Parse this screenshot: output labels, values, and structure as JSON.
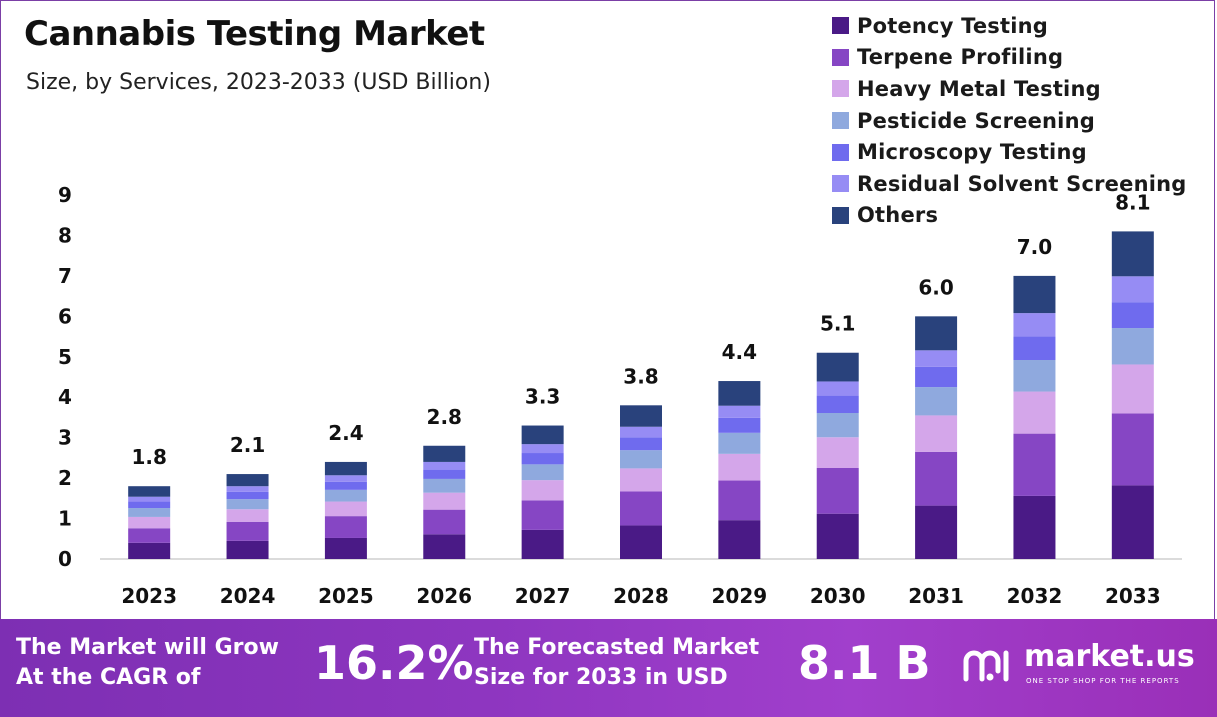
{
  "header": {
    "title": "Cannabis Testing Market",
    "subtitle": "Size, by Services, 2023-2033 (USD Billion)"
  },
  "chart_data": {
    "type": "bar",
    "stacked": true,
    "title": "Cannabis Testing Market",
    "subtitle": "Size, by Services, 2023-2033 (USD Billion)",
    "categories": [
      "2023",
      "2024",
      "2025",
      "2026",
      "2027",
      "2028",
      "2029",
      "2030",
      "2031",
      "2032",
      "2033"
    ],
    "totals": [
      1.8,
      2.1,
      2.4,
      2.8,
      3.3,
      3.8,
      4.4,
      5.1,
      6.0,
      7.0,
      8.1
    ],
    "total_labels": [
      "1.8",
      "2.1",
      "2.4",
      "2.8",
      "3.3",
      "3.8",
      "4.4",
      "5.1",
      "6.0",
      "7.0",
      "8.1"
    ],
    "series": [
      {
        "name": "Potency Testing",
        "color": "#4a1a86",
        "values": [
          0.4,
          0.45,
          0.52,
          0.61,
          0.72,
          0.83,
          0.96,
          1.12,
          1.32,
          1.56,
          1.82
        ]
      },
      {
        "name": "Terpene Profiling",
        "color": "#8646c4",
        "values": [
          0.36,
          0.47,
          0.54,
          0.61,
          0.73,
          0.84,
          0.98,
          1.13,
          1.33,
          1.54,
          1.78
        ]
      },
      {
        "name": "Heavy Metal Testing",
        "color": "#d4a6ea",
        "values": [
          0.28,
          0.31,
          0.36,
          0.42,
          0.5,
          0.57,
          0.66,
          0.76,
          0.9,
          1.04,
          1.21
        ]
      },
      {
        "name": "Pesticide Screening",
        "color": "#8fa9de",
        "values": [
          0.22,
          0.25,
          0.29,
          0.34,
          0.39,
          0.45,
          0.52,
          0.6,
          0.7,
          0.78,
          0.9
        ]
      },
      {
        "name": "Microscopy Testing",
        "color": "#6f6bee",
        "values": [
          0.16,
          0.18,
          0.2,
          0.23,
          0.28,
          0.32,
          0.37,
          0.43,
          0.5,
          0.58,
          0.64
        ]
      },
      {
        "name": "Residual Solvent Screening",
        "color": "#968cf4",
        "values": [
          0.12,
          0.14,
          0.16,
          0.19,
          0.22,
          0.26,
          0.3,
          0.35,
          0.41,
          0.58,
          0.64
        ]
      },
      {
        "name": "Others",
        "color": "#29427c",
        "values": [
          0.26,
          0.3,
          0.33,
          0.4,
          0.46,
          0.53,
          0.61,
          0.71,
          0.84,
          0.92,
          1.11
        ]
      }
    ],
    "ylim": [
      0,
      9
    ],
    "yticks": [
      "0",
      "1",
      "2",
      "3",
      "4",
      "5",
      "6",
      "7",
      "8",
      "9"
    ],
    "grid": false,
    "legend_position": "top-right"
  },
  "banner": {
    "cagr_text_line1": "The Market will Grow",
    "cagr_text_line2": "At the CAGR of",
    "cagr_value": "16.2%",
    "forecast_text_line1": "The Forecasted Market",
    "forecast_text_line2": "Size for 2033 in USD",
    "forecast_value": "8.1 B",
    "logo_text": "market.us",
    "logo_tagline": "ONE STOP SHOP FOR THE REPORTS"
  }
}
